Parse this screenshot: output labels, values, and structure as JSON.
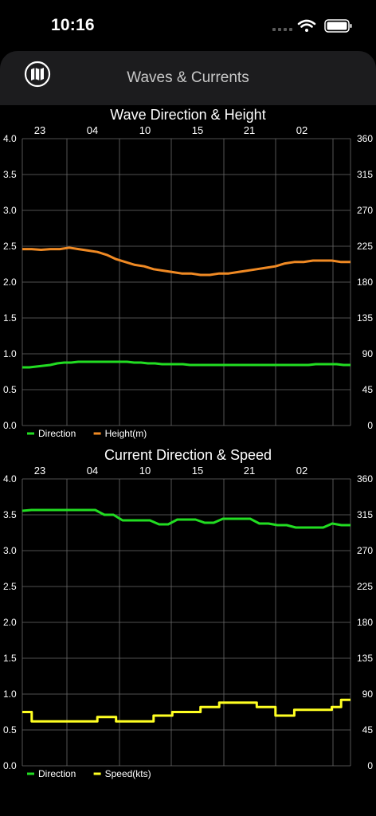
{
  "status_bar": {
    "time": "10:16"
  },
  "nav": {
    "title": "Waves & Currents",
    "left_icon": "map-icon"
  },
  "chart_data": [
    {
      "type": "line",
      "title": "Wave Direction & Height",
      "x_tick_labels": [
        "23",
        "04",
        "10",
        "15",
        "21",
        "02"
      ],
      "y_left": {
        "range": [
          0,
          4
        ],
        "ticks": [
          "0.0",
          "0.5",
          "1.0",
          "1.5",
          "2.0",
          "2.5",
          "3.0",
          "3.5",
          "4.0"
        ]
      },
      "y_right": {
        "range": [
          0,
          360
        ],
        "ticks": [
          "0",
          "45",
          "90",
          "135",
          "180",
          "225",
          "270",
          "315",
          "360"
        ]
      },
      "grid": true,
      "legend_position": "bottom-left",
      "series": [
        {
          "name": "Direction",
          "color": "#22dd22",
          "axis": "right",
          "values": [
            73,
            73,
            74,
            75,
            76,
            78,
            79,
            79,
            80,
            80,
            80,
            80,
            80,
            80,
            80,
            80,
            79,
            79,
            78,
            78,
            77,
            77,
            77,
            77,
            76,
            76,
            76,
            76,
            76,
            76,
            76,
            76,
            76,
            76,
            76,
            76,
            76,
            76,
            76,
            76,
            76,
            76,
            77,
            77,
            77,
            77,
            76,
            76
          ]
        },
        {
          "name": "Height(m)",
          "color": "#f08a24",
          "axis": "left",
          "values": [
            2.46,
            2.46,
            2.45,
            2.46,
            2.46,
            2.48,
            2.46,
            2.44,
            2.42,
            2.38,
            2.32,
            2.28,
            2.24,
            2.22,
            2.18,
            2.16,
            2.14,
            2.12,
            2.12,
            2.1,
            2.1,
            2.12,
            2.12,
            2.14,
            2.16,
            2.18,
            2.2,
            2.22,
            2.26,
            2.28,
            2.28,
            2.3,
            2.3,
            2.3,
            2.28,
            2.28
          ]
        }
      ]
    },
    {
      "type": "line",
      "title": "Current Direction & Speed",
      "x_tick_labels": [
        "23",
        "04",
        "10",
        "15",
        "21",
        "02"
      ],
      "y_left": {
        "range": [
          0,
          4
        ],
        "ticks": [
          "0.0",
          "0.5",
          "1.0",
          "1.5",
          "2.0",
          "2.5",
          "3.0",
          "3.5",
          "4.0"
        ]
      },
      "y_right": {
        "range": [
          0,
          360
        ],
        "ticks": [
          "0",
          "45",
          "90",
          "135",
          "180",
          "225",
          "270",
          "315",
          "360"
        ]
      },
      "grid": true,
      "legend_position": "bottom-left",
      "series": [
        {
          "name": "Direction",
          "color": "#22dd22",
          "axis": "right",
          "values": [
            320,
            321,
            321,
            321,
            321,
            321,
            321,
            321,
            321,
            315,
            315,
            308,
            308,
            308,
            308,
            303,
            303,
            309,
            309,
            309,
            305,
            305,
            310,
            310,
            310,
            310,
            304,
            304,
            302,
            302,
            299,
            299,
            299,
            299,
            304,
            302,
            302
          ]
        },
        {
          "name": "Speed(kts)",
          "color": "#ffff22",
          "axis": "left",
          "step": true,
          "values": [
            0.75,
            0.62,
            0.62,
            0.62,
            0.62,
            0.62,
            0.62,
            0.62,
            0.68,
            0.68,
            0.62,
            0.62,
            0.62,
            0.62,
            0.7,
            0.7,
            0.75,
            0.75,
            0.75,
            0.82,
            0.82,
            0.88,
            0.88,
            0.88,
            0.88,
            0.82,
            0.82,
            0.7,
            0.7,
            0.78,
            0.78,
            0.78,
            0.78,
            0.82,
            0.92,
            0.92
          ]
        }
      ]
    }
  ]
}
